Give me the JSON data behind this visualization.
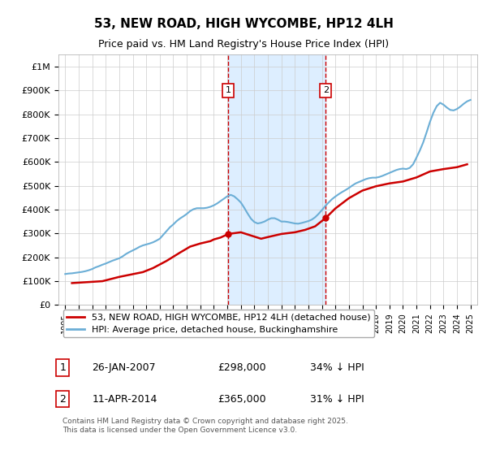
{
  "title": "53, NEW ROAD, HIGH WYCOMBE, HP12 4LH",
  "subtitle": "Price paid vs. HM Land Registry's House Price Index (HPI)",
  "background_color": "#ffffff",
  "plot_bg_color": "#ffffff",
  "grid_color": "#cccccc",
  "hpi_color": "#6baed6",
  "price_color": "#cc0000",
  "shade_color": "#ddeeff",
  "ylim": [
    0,
    1050000
  ],
  "yticks": [
    0,
    100000,
    200000,
    300000,
    400000,
    500000,
    600000,
    700000,
    800000,
    900000,
    1000000
  ],
  "ytick_labels": [
    "£0",
    "£100K",
    "£200K",
    "£300K",
    "£400K",
    "£500K",
    "£600K",
    "£700K",
    "£800K",
    "£900K",
    "£1M"
  ],
  "xlim_start": 1994.5,
  "xlim_end": 2025.5,
  "xticks": [
    1995,
    1996,
    1997,
    1998,
    1999,
    2000,
    2001,
    2002,
    2003,
    2004,
    2005,
    2006,
    2007,
    2008,
    2009,
    2010,
    2011,
    2012,
    2013,
    2014,
    2015,
    2016,
    2017,
    2018,
    2019,
    2020,
    2021,
    2022,
    2023,
    2024,
    2025
  ],
  "transaction1_x": 2007.07,
  "transaction1_y": 298000,
  "transaction1_label": "1",
  "transaction2_x": 2014.28,
  "transaction2_y": 365000,
  "transaction2_label": "2",
  "legend_line1": "53, NEW ROAD, HIGH WYCOMBE, HP12 4LH (detached house)",
  "legend_line2": "HPI: Average price, detached house, Buckinghamshire",
  "table_row1": [
    "1",
    "26-JAN-2007",
    "£298,000",
    "34% ↓ HPI"
  ],
  "table_row2": [
    "2",
    "11-APR-2014",
    "£365,000",
    "31% ↓ HPI"
  ],
  "footnote": "Contains HM Land Registry data © Crown copyright and database right 2025.\nThis data is licensed under the Open Government Licence v3.0.",
  "hpi_data_x": [
    1995.0,
    1995.25,
    1995.5,
    1995.75,
    1996.0,
    1996.25,
    1996.5,
    1996.75,
    1997.0,
    1997.25,
    1997.5,
    1997.75,
    1998.0,
    1998.25,
    1998.5,
    1998.75,
    1999.0,
    1999.25,
    1999.5,
    1999.75,
    2000.0,
    2000.25,
    2000.5,
    2000.75,
    2001.0,
    2001.25,
    2001.5,
    2001.75,
    2002.0,
    2002.25,
    2002.5,
    2002.75,
    2003.0,
    2003.25,
    2003.5,
    2003.75,
    2004.0,
    2004.25,
    2004.5,
    2004.75,
    2005.0,
    2005.25,
    2005.5,
    2005.75,
    2006.0,
    2006.25,
    2006.5,
    2006.75,
    2007.0,
    2007.25,
    2007.5,
    2007.75,
    2008.0,
    2008.25,
    2008.5,
    2008.75,
    2009.0,
    2009.25,
    2009.5,
    2009.75,
    2010.0,
    2010.25,
    2010.5,
    2010.75,
    2011.0,
    2011.25,
    2011.5,
    2011.75,
    2012.0,
    2012.25,
    2012.5,
    2012.75,
    2013.0,
    2013.25,
    2013.5,
    2013.75,
    2014.0,
    2014.25,
    2014.5,
    2014.75,
    2015.0,
    2015.25,
    2015.5,
    2015.75,
    2016.0,
    2016.25,
    2016.5,
    2016.75,
    2017.0,
    2017.25,
    2017.5,
    2017.75,
    2018.0,
    2018.25,
    2018.5,
    2018.75,
    2019.0,
    2019.25,
    2019.5,
    2019.75,
    2020.0,
    2020.25,
    2020.5,
    2020.75,
    2021.0,
    2021.25,
    2021.5,
    2021.75,
    2022.0,
    2022.25,
    2022.5,
    2022.75,
    2023.0,
    2023.25,
    2023.5,
    2023.75,
    2024.0,
    2024.25,
    2024.5,
    2024.75,
    2025.0
  ],
  "hpi_data_y": [
    130000,
    132000,
    133000,
    135000,
    137000,
    139000,
    142000,
    146000,
    151000,
    158000,
    163000,
    169000,
    174000,
    180000,
    186000,
    191000,
    196000,
    204000,
    214000,
    222000,
    229000,
    236000,
    244000,
    250000,
    254000,
    258000,
    263000,
    270000,
    278000,
    294000,
    310000,
    326000,
    338000,
    352000,
    363000,
    372000,
    382000,
    394000,
    402000,
    406000,
    406000,
    406000,
    408000,
    412000,
    418000,
    426000,
    436000,
    446000,
    456000,
    462000,
    456000,
    444000,
    430000,
    408000,
    384000,
    362000,
    348000,
    342000,
    345000,
    350000,
    358000,
    364000,
    364000,
    358000,
    350000,
    350000,
    348000,
    345000,
    342000,
    341000,
    344000,
    348000,
    352000,
    358000,
    368000,
    382000,
    398000,
    415000,
    430000,
    444000,
    455000,
    465000,
    474000,
    482000,
    491000,
    501000,
    510000,
    516000,
    522000,
    528000,
    532000,
    534000,
    534000,
    537000,
    542000,
    548000,
    554000,
    560000,
    566000,
    570000,
    572000,
    570000,
    575000,
    590000,
    618000,
    648000,
    682000,
    724000,
    768000,
    806000,
    834000,
    848000,
    840000,
    828000,
    818000,
    816000,
    822000,
    832000,
    844000,
    854000,
    860000
  ],
  "price_data_x": [
    1995.5,
    1997.75,
    1999.0,
    2000.75,
    2001.5,
    2002.5,
    2003.5,
    2004.25,
    2005.0,
    2005.75,
    2006.0,
    2006.5,
    2007.07,
    2008.0,
    2009.5,
    2010.0,
    2011.0,
    2012.0,
    2012.75,
    2013.5,
    2014.28,
    2015.0,
    2016.0,
    2017.0,
    2018.0,
    2019.0,
    2020.0,
    2021.0,
    2022.0,
    2023.0,
    2024.0,
    2024.75
  ],
  "price_data_y": [
    92000,
    100000,
    118000,
    138000,
    155000,
    185000,
    220000,
    245000,
    258000,
    268000,
    275000,
    283000,
    298000,
    305000,
    278000,
    285000,
    298000,
    305000,
    315000,
    330000,
    365000,
    405000,
    448000,
    480000,
    498000,
    510000,
    518000,
    535000,
    560000,
    570000,
    578000,
    590000
  ]
}
